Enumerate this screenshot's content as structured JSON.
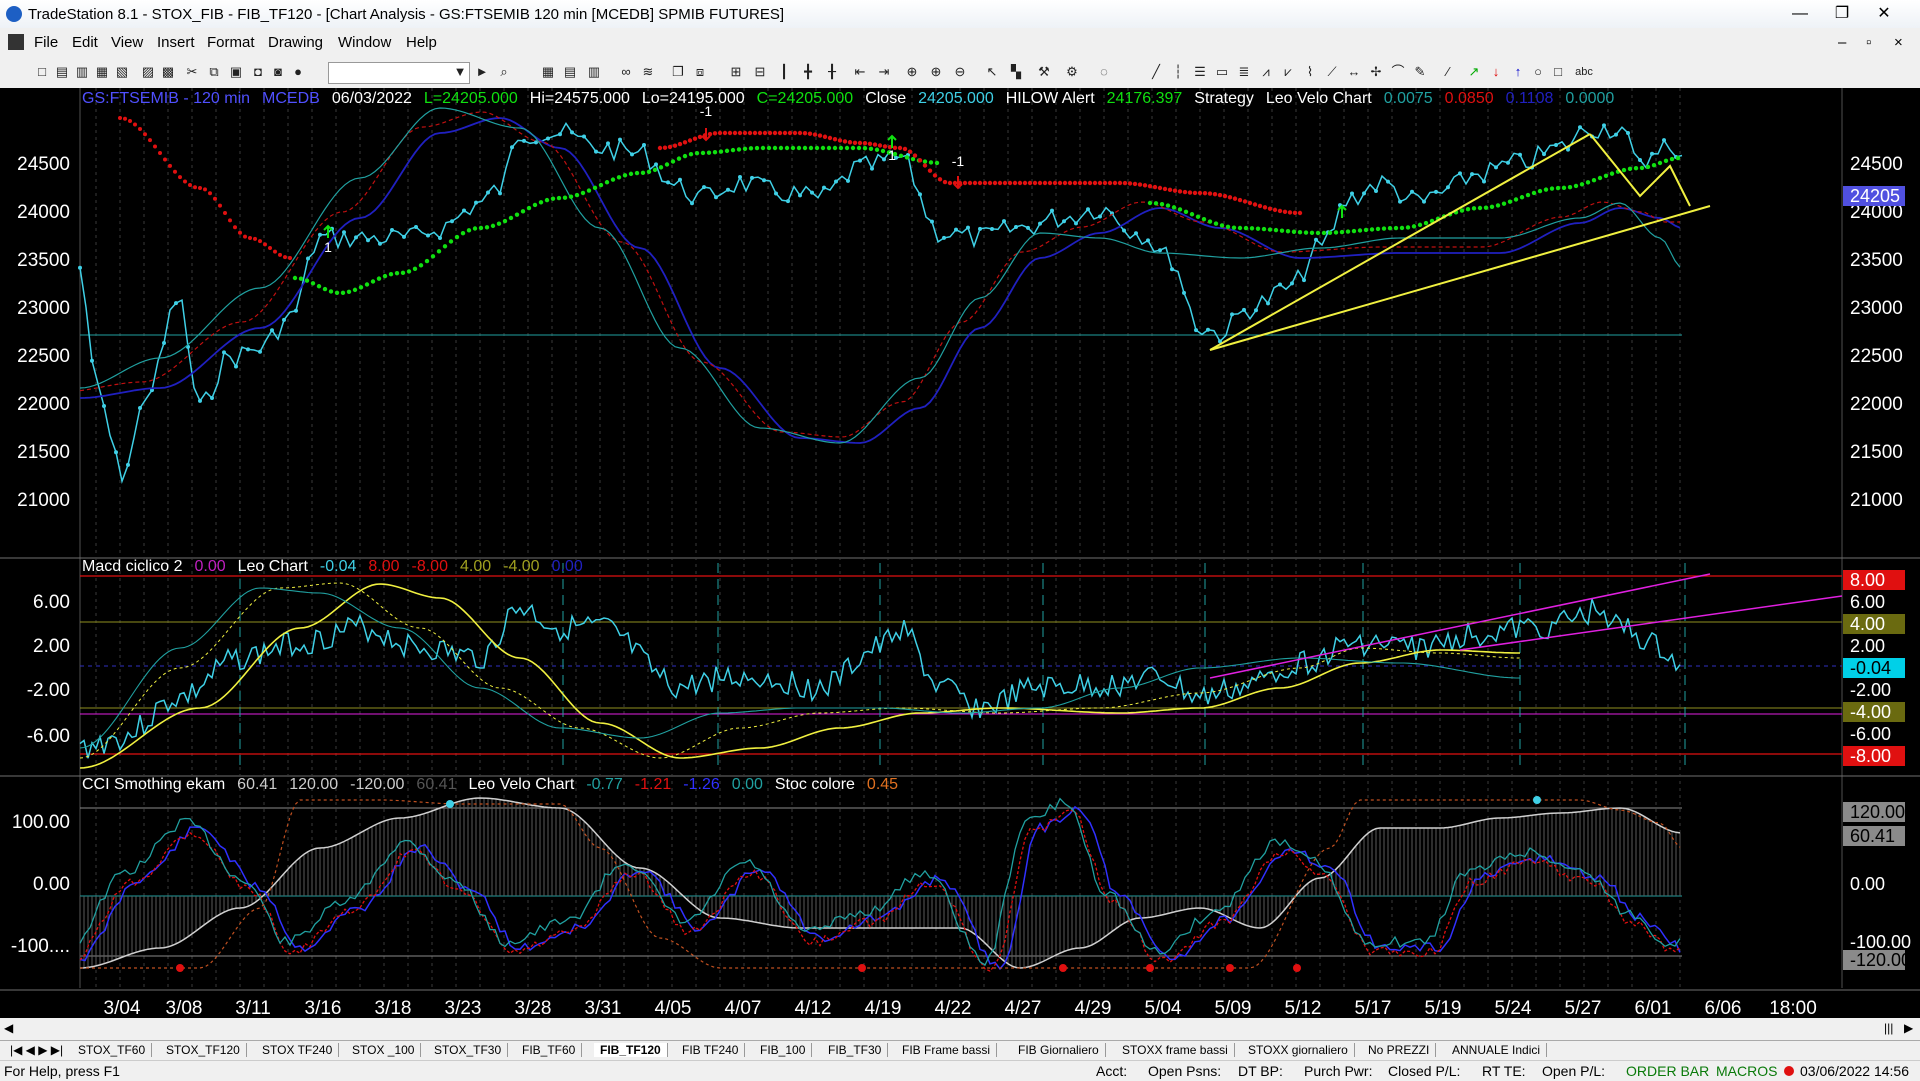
{
  "window": {
    "title": "TradeStation 8.1 - STOX_FIB - FIB_TF120 - [Chart Analysis - GS:FTSEMIB  120 min  [MCEDB] SPMIB FUTURES]",
    "minimize": "—",
    "restore": "❐",
    "close": "✕"
  },
  "menu": [
    "File",
    "Edit",
    "View",
    "Insert",
    "Format",
    "Drawing",
    "Window",
    "Help"
  ],
  "price_header": {
    "symbol": "GS:FTSEMIB - 120 min",
    "exchange": "MCEDB",
    "date": "06/03/2022",
    "low": "L=24205.000",
    "high": "Hi=24575.000",
    "lo": "Lo=24195.000",
    "close_c": "C=24205.000",
    "close_label": "Close",
    "close_value": "24205.000",
    "hilow_label": "HILOW Alert",
    "hilow_value": "24176.397",
    "strategy": "Strategy",
    "leo": "Leo Velo Chart",
    "v1": "0.0075",
    "v2": "0.0850",
    "v3": "0.1108",
    "v4": "0.0000"
  },
  "macd_header": {
    "name": "Macd ciclico 2",
    "v0": "0.00",
    "leo": "Leo Chart",
    "v1": "-0.04",
    "v2": "8.00",
    "v3": "-8.00",
    "v4": "4.00",
    "v5": "-4.00",
    "v6": "0.00"
  },
  "cci_header": {
    "name": "CCI Smothing ekam",
    "v1": "60.41",
    "v2": "120.00",
    "v3": "-120.00",
    "v4": "60.41",
    "leo": "Leo Velo Chart",
    "w1": "-0.77",
    "w2": "-1.21",
    "w3": "-1.26",
    "w4": "0.00",
    "stoc": "Stoc colore",
    "w5": "0.45"
  },
  "price_axis": [
    "24500",
    "24000",
    "23500",
    "23000",
    "22500",
    "22000",
    "21500",
    "21000"
  ],
  "price_last": "24205",
  "macd_axis": [
    "6.00",
    "2.00",
    "-2.00",
    "-6.00"
  ],
  "macd_right": [
    "8.00",
    "6.00",
    "4.00",
    "2.00",
    "-0.04",
    "-2.00",
    "-4.00",
    "-6.00",
    "-8.00"
  ],
  "cci_axis": [
    "100.00",
    "0.00",
    "-100...."
  ],
  "cci_right": [
    "120.00",
    "60.41",
    "0.00",
    "-100.00",
    "-120.00"
  ],
  "date_axis": [
    "3/04",
    "3/08",
    "3/11",
    "3/16",
    "3/18",
    "3/23",
    "3/28",
    "3/31",
    "4/05",
    "4/07",
    "4/12",
    "4/19",
    "4/22",
    "4/27",
    "4/29",
    "5/04",
    "5/09",
    "5/12",
    "5/17",
    "5/19",
    "5/24",
    "5/27",
    "6/01",
    "6/06",
    "18:00"
  ],
  "signals": [
    "-1",
    "1",
    "-1",
    "1"
  ],
  "tabs": [
    "STOX_TF60",
    "STOX_TF120",
    "STOX TF240",
    "STOX _100",
    "STOX_TF30",
    "FIB_TF60",
    "FIB_TF120",
    "FIB TF240",
    "FIB_100",
    "FIB_TF30",
    "FIB Frame bassi",
    "FIB Giornaliero",
    "STOXX frame bassi",
    "STOXX giornaliero",
    "No PREZZI",
    "ANNUALE Indici"
  ],
  "active_tab": "FIB_TF120",
  "status": {
    "help": "For Help, press F1",
    "acct": "Acct:",
    "open_psns": "Open Psns:",
    "dt_bp": "DT BP:",
    "purch": "Purch Pwr:",
    "closed": "Closed P/L:",
    "rt": "RT TE:",
    "open_pl": "Open P/L:",
    "order_bar": "ORDER BAR",
    "macros": "MACROS",
    "datetime": "03/06/2022 14:56"
  },
  "colors": {
    "cyan": "#3fd0e6",
    "red": "#e01010",
    "green": "#10e010",
    "yellow": "#f0f040",
    "navy": "#2020c0",
    "teal": "#20a0a0",
    "magenta": "#e020e0"
  }
}
